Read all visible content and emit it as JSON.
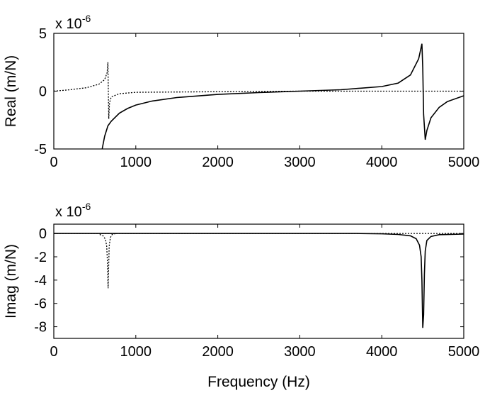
{
  "chart_data": [
    {
      "type": "line",
      "id": "real",
      "ylabel": "Real (m/N)",
      "xlabel": "",
      "multiplier": "x 10",
      "multiplier_exp": "-6",
      "xlim": [
        0,
        5000
      ],
      "ylim": [
        -5,
        5
      ],
      "xticks": [
        0,
        1000,
        2000,
        3000,
        4000,
        5000
      ],
      "yticks": [
        -5,
        0,
        5
      ],
      "grid": false,
      "series": [
        {
          "style": "solid",
          "x": [
            590,
            620,
            660,
            700,
            800,
            900,
            1000,
            1200,
            1500,
            2000,
            2500,
            3000,
            3500,
            4000,
            4200,
            4350,
            4450,
            4490,
            4500,
            4510,
            4530,
            4550,
            4600,
            4700,
            4800,
            5000
          ],
          "y": [
            -5.0,
            -3.9,
            -3.0,
            -2.6,
            -1.9,
            -1.5,
            -1.2,
            -0.85,
            -0.55,
            -0.28,
            -0.12,
            0.0,
            0.12,
            0.4,
            0.7,
            1.4,
            2.8,
            4.1,
            2.0,
            -2.0,
            -4.2,
            -3.4,
            -2.3,
            -1.4,
            -0.9,
            -0.4
          ]
        },
        {
          "style": "dotted",
          "x": [
            0,
            200,
            400,
            550,
            620,
            650,
            660,
            665,
            670,
            680,
            700,
            800,
            1000,
            2000,
            3000,
            4000,
            4500,
            5000
          ],
          "y": [
            0.0,
            0.12,
            0.3,
            0.6,
            1.0,
            1.6,
            2.5,
            0.0,
            -2.4,
            -1.0,
            -0.5,
            -0.22,
            -0.1,
            -0.05,
            0.0,
            0.0,
            0.0,
            0.0
          ]
        }
      ]
    },
    {
      "type": "line",
      "id": "imag",
      "ylabel": "Imag (m/N)",
      "xlabel": "Frequency (Hz)",
      "multiplier": "x 10",
      "multiplier_exp": "-6",
      "xlim": [
        0,
        5000
      ],
      "ylim": [
        -9,
        0.8
      ],
      "xticks": [
        0,
        1000,
        2000,
        3000,
        4000,
        5000
      ],
      "yticks": [
        -8,
        -6,
        -4,
        -2,
        0
      ],
      "grid": false,
      "series": [
        {
          "style": "solid",
          "x": [
            0,
            3000,
            3700,
            4000,
            4200,
            4350,
            4420,
            4460,
            4480,
            4490,
            4500,
            4510,
            4520,
            4530,
            4550,
            4600,
            4700,
            5000
          ],
          "y": [
            0.0,
            0.0,
            0.0,
            -0.03,
            -0.08,
            -0.2,
            -0.45,
            -1.0,
            -2.0,
            -4.0,
            -8.1,
            -7.0,
            -3.5,
            -1.5,
            -0.6,
            -0.25,
            -0.1,
            -0.05
          ]
        },
        {
          "style": "dotted",
          "x": [
            560,
            600,
            630,
            645,
            655,
            662,
            668,
            675,
            690,
            710,
            760
          ],
          "y": [
            -0.08,
            -0.2,
            -0.5,
            -1.1,
            -2.5,
            -4.7,
            -3.0,
            -1.1,
            -0.35,
            -0.1,
            0.0
          ]
        },
        {
          "style": "dotted",
          "x": [
            0,
            5000
          ],
          "y": [
            0.0,
            0.0
          ]
        }
      ]
    }
  ]
}
